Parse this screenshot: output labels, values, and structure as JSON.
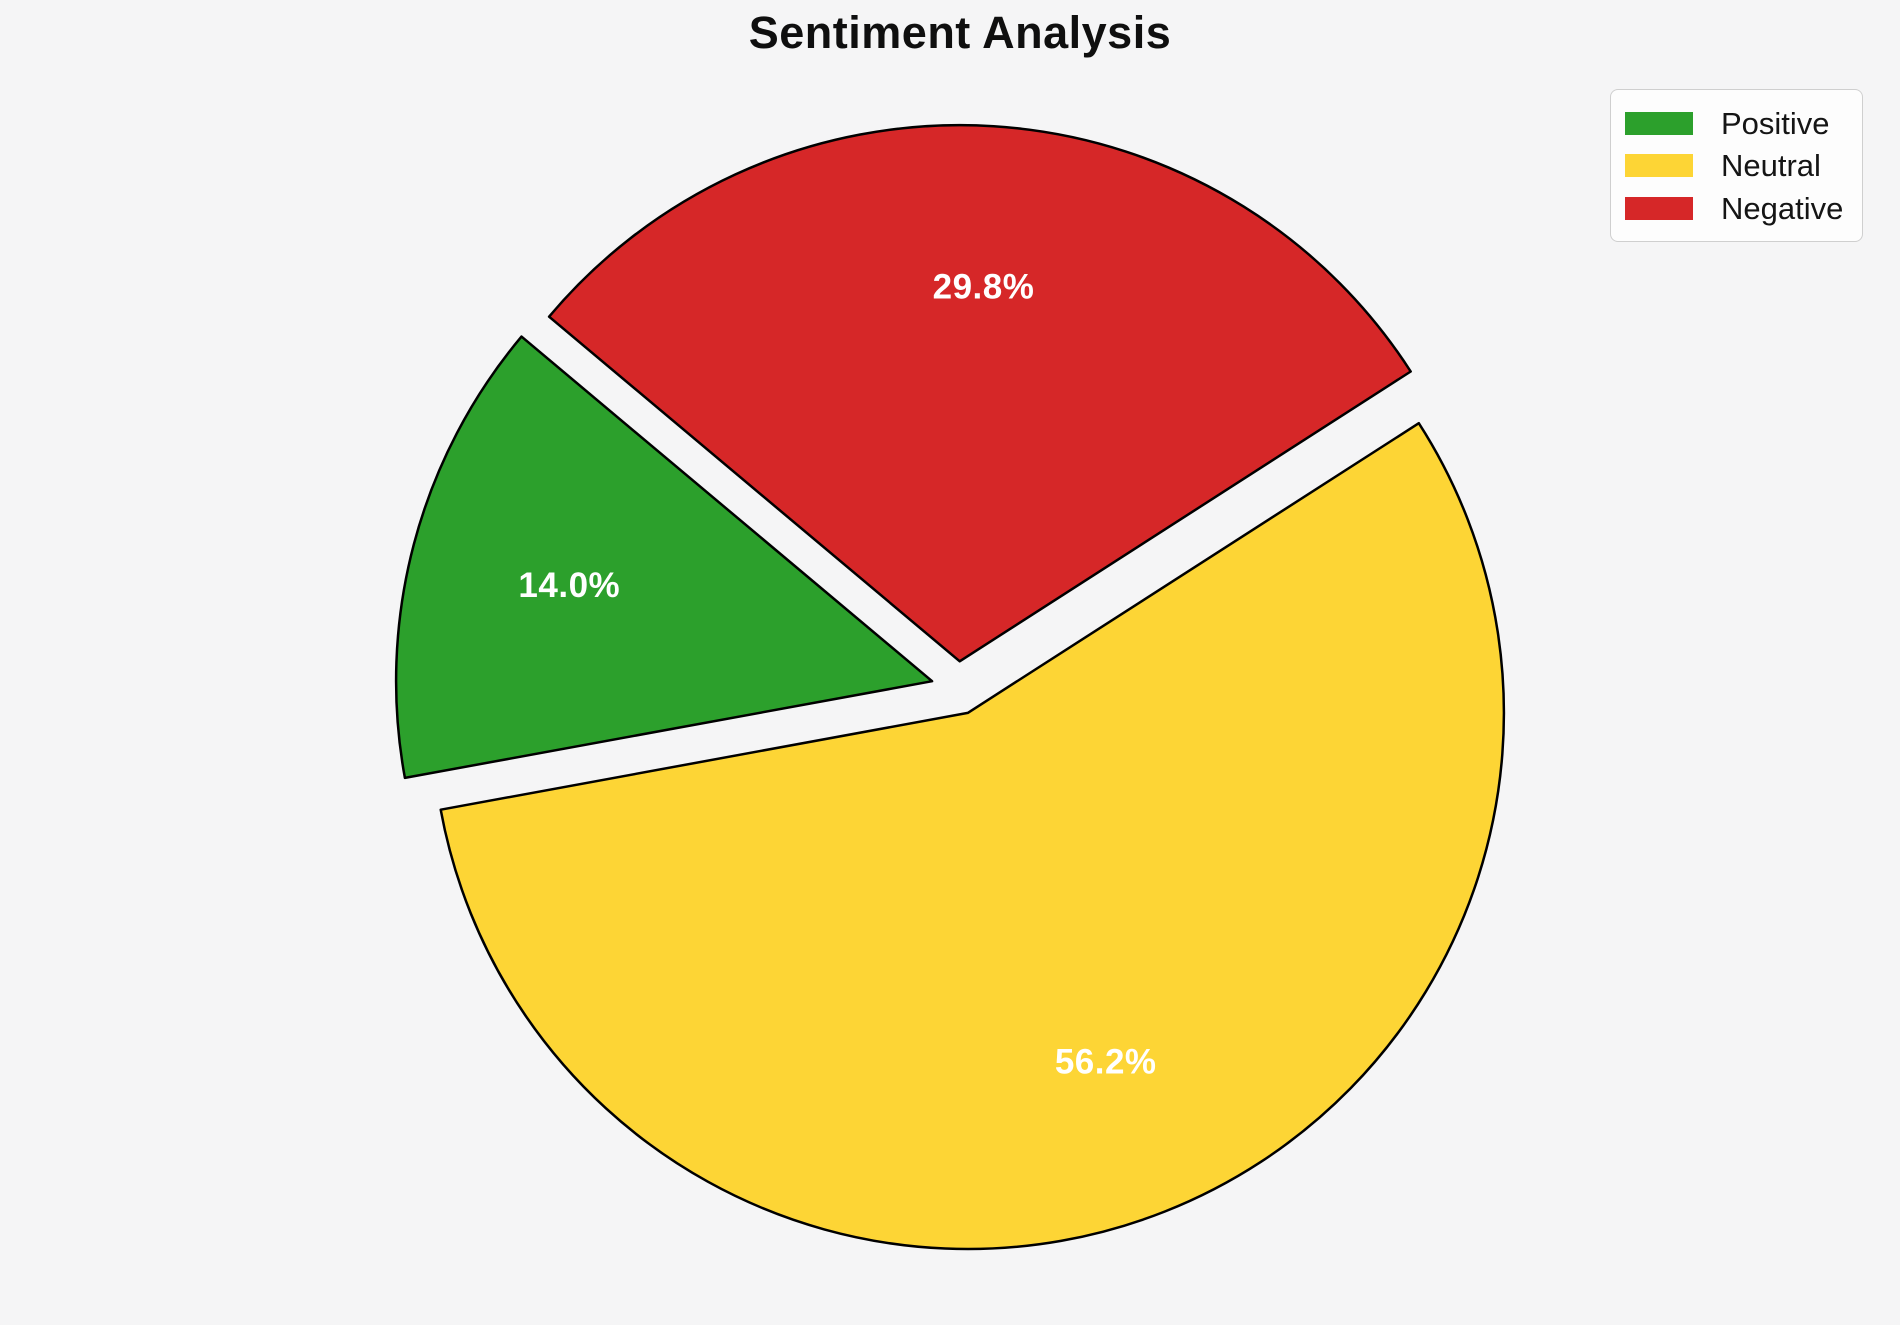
{
  "page": {
    "background_color": "#f5f5f6"
  },
  "title": "Sentiment Analysis",
  "legend": {
    "position": "upper-right",
    "items": [
      {
        "label": "Positive",
        "color": "#2ca02c"
      },
      {
        "label": "Neutral",
        "color": "#fdd535"
      },
      {
        "label": "Negative",
        "color": "#d62728"
      }
    ]
  },
  "chart_data": {
    "type": "pie",
    "title": "Sentiment Analysis",
    "labels": [
      "Positive",
      "Neutral",
      "Negative"
    ],
    "values": [
      14.0,
      56.2,
      29.8
    ],
    "pct_labels": [
      "14.0%",
      "56.2%",
      "29.8%"
    ],
    "colors": [
      "#2ca02c",
      "#fdd535",
      "#d62728"
    ],
    "start_angle_deg": 140,
    "direction": "counterclockwise",
    "explode": 0.05,
    "pct_label_distance": 0.7,
    "pct_label_color": "#ffffff",
    "edge_color": "#000000",
    "edge_width": 2.5,
    "legend_position": "upper right",
    "legend_entries": [
      "Positive",
      "Neutral",
      "Negative"
    ]
  }
}
